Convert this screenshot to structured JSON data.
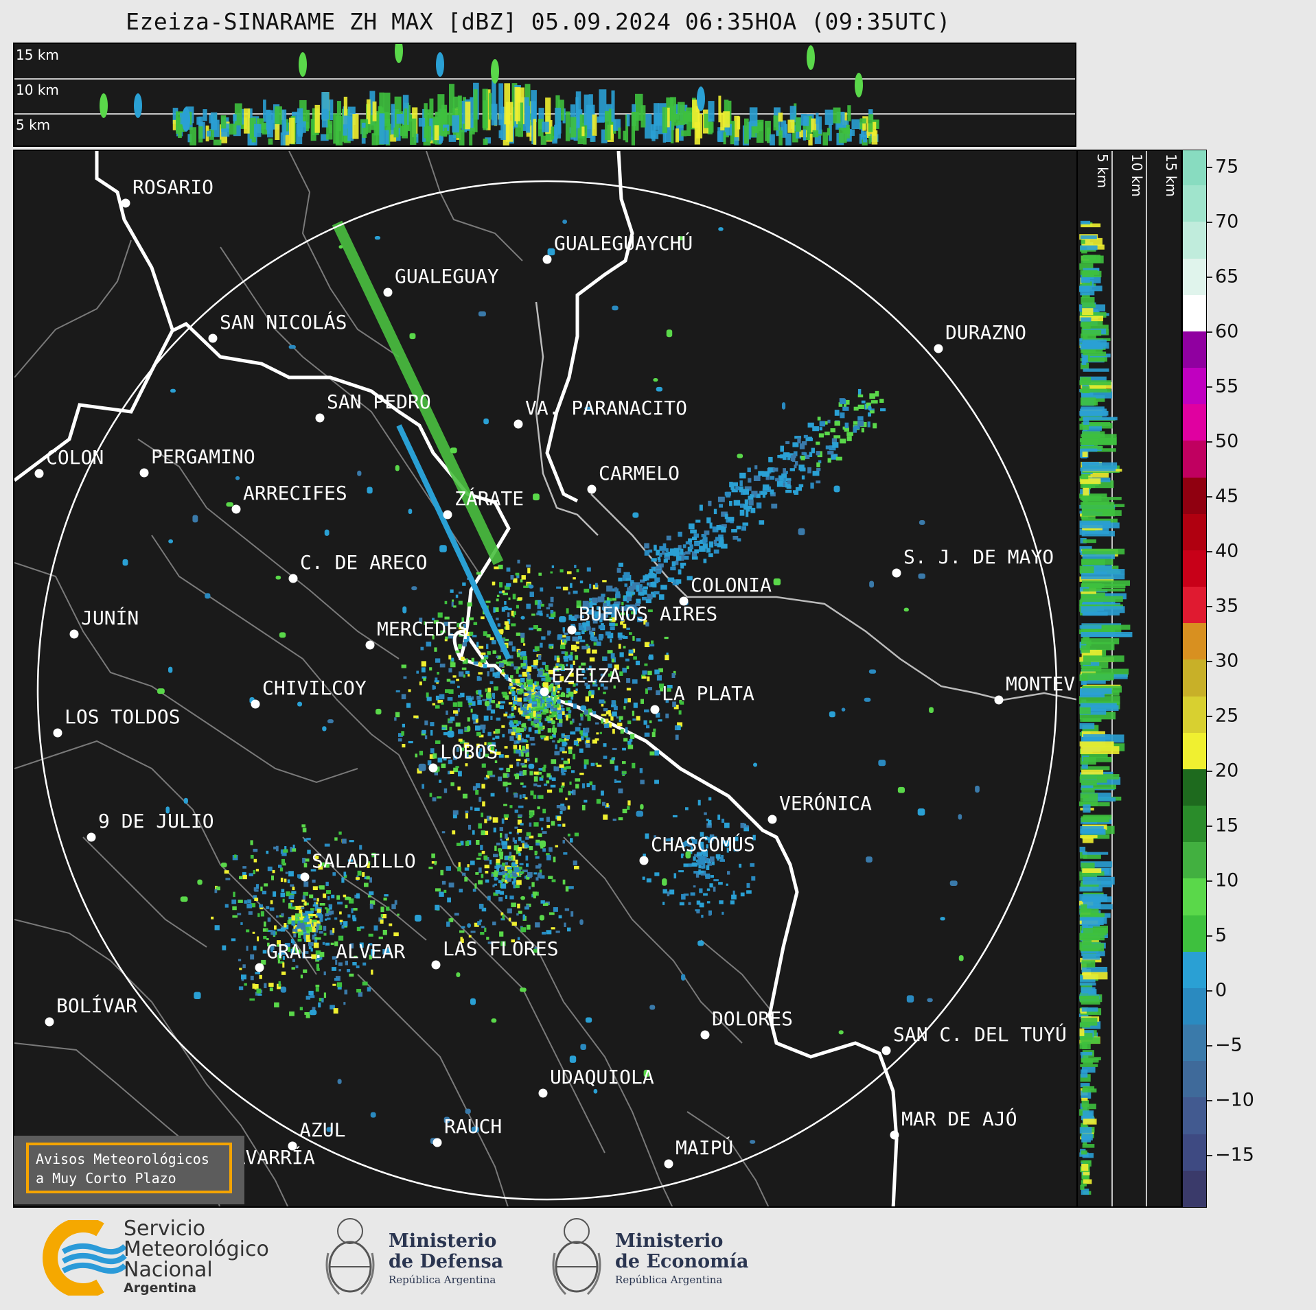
{
  "title": "Ezeiza-SINARAME ZH MAX [dBZ] 05.09.2024 06:35HOA (09:35UTC)",
  "top_panel": {
    "altitudes": [
      "15 km",
      "10 km",
      "5 km"
    ]
  },
  "side_panel": {
    "altitudes": [
      "5 km",
      "10 km",
      "15 km"
    ]
  },
  "colorbar": {
    "ticks": [
      "75",
      "70",
      "65",
      "60",
      "55",
      "50",
      "45",
      "40",
      "35",
      "30",
      "25",
      "20",
      "15",
      "10",
      "5",
      "0",
      "−5",
      "−10",
      "−15"
    ],
    "colors": [
      "#3a3a6a",
      "#3e4a82",
      "#425a90",
      "#3f6a9a",
      "#3a7aaa",
      "#2a8ac0",
      "#2aa0d4",
      "#3ec03e",
      "#5ad84a",
      "#42b040",
      "#2a8c2a",
      "#1e6a1e",
      "#f0f030",
      "#d8d030",
      "#c8b028",
      "#d89020",
      "#e01a30",
      "#c80018",
      "#b00010",
      "#900010",
      "#c00060",
      "#e000a0",
      "#c000c0",
      "#9000a0",
      "#ffffff",
      "#e0f4ec",
      "#c0ecdc",
      "#a0e4cc",
      "#88dcc0"
    ]
  },
  "alert": {
    "line1": "Avisos Meteorológicos",
    "line2": "a Muy Corto Plazo"
  },
  "cities": [
    {
      "name": "ROSARIO"
    },
    {
      "name": "GUALEGUAYCHÚ"
    },
    {
      "name": "GUALEGUAY"
    },
    {
      "name": "SAN NICOLÁS"
    },
    {
      "name": "DURAZNO"
    },
    {
      "name": "SAN PEDRO"
    },
    {
      "name": "VA. PARANACITO"
    },
    {
      "name": "COLON"
    },
    {
      "name": "PERGAMINO"
    },
    {
      "name": "CARMELO"
    },
    {
      "name": "ARRECIFES"
    },
    {
      "name": "ZÁRATE"
    },
    {
      "name": "C. DE ARECO"
    },
    {
      "name": "S. J. DE MAYO"
    },
    {
      "name": "COLONIA"
    },
    {
      "name": "JUNÍN"
    },
    {
      "name": "BUENOS AIRES"
    },
    {
      "name": "MERCEDES"
    },
    {
      "name": "EZEIZA"
    },
    {
      "name": "MONTEVIDEO"
    },
    {
      "name": "CHIVILCOY"
    },
    {
      "name": "LA PLATA"
    },
    {
      "name": "LOS TOLDOS"
    },
    {
      "name": "LOBOS"
    },
    {
      "name": "VERÓNICA"
    },
    {
      "name": "9 DE JULIO"
    },
    {
      "name": "CHASCOMÚS"
    },
    {
      "name": "SALADILLO"
    },
    {
      "name": "GRAL. ALVEAR"
    },
    {
      "name": "LAS FLORES"
    },
    {
      "name": "BOLÍVAR"
    },
    {
      "name": "DOLORES"
    },
    {
      "name": "SAN C. DEL TUYÚ"
    },
    {
      "name": "UDAQUIOLA"
    },
    {
      "name": "MAR DE AJÓ"
    },
    {
      "name": "AZUL"
    },
    {
      "name": "RAUCH"
    },
    {
      "name": "OLAVARRÍA"
    },
    {
      "name": "MAIPÚ"
    }
  ],
  "logos": {
    "smn": {
      "line1": "Servicio",
      "line2": "Meteorológico",
      "line3": "Nacional",
      "line4": "Argentina"
    },
    "defensa": {
      "line1": "Ministerio",
      "line2": "de Defensa",
      "line3": "República Argentina"
    },
    "economia": {
      "line1": "Ministerio",
      "line2": "de Economía",
      "line3": "República Argentina"
    }
  }
}
